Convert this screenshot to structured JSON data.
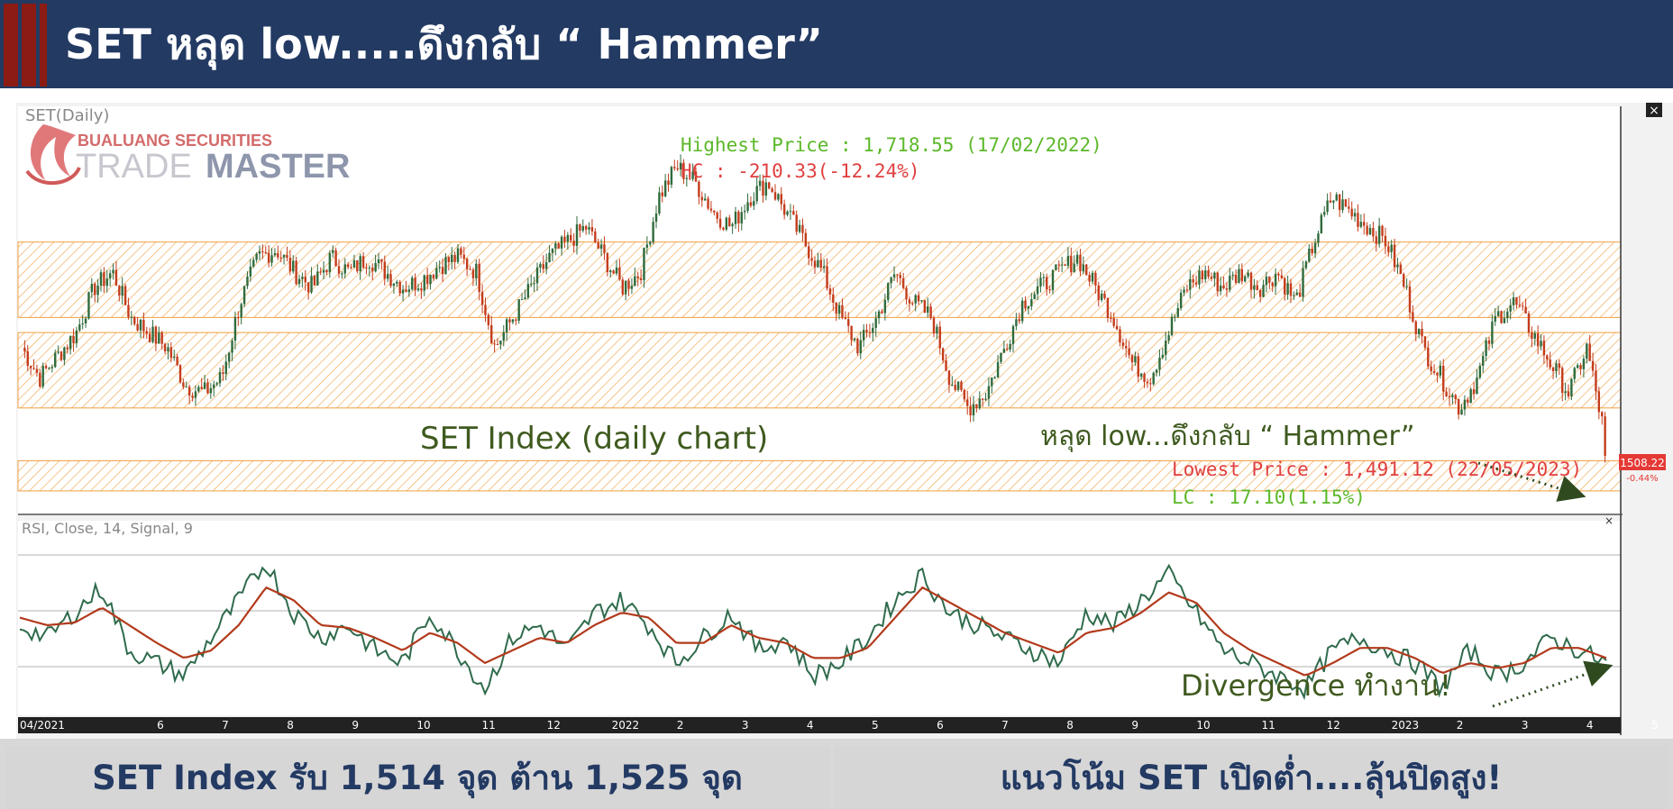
{
  "header": {
    "title": "SET หลุด low.....ดึงกลับ “ Hammer”",
    "background": "#233a63",
    "accent": "#8c1c13"
  },
  "logo": {
    "company": "BUALUANG SECURITIES",
    "product_light": "TRADE",
    "product_bold": "MASTER",
    "color": "#c84a4a"
  },
  "price_panel": {
    "label": "SET(Daily)",
    "last_price_badge": "1508.22",
    "change_pct": "-0.44%",
    "close_button": "×"
  },
  "rsi_panel": {
    "label": "RSI, Close, 14, Signal, 9",
    "close_button": "×"
  },
  "annotations": {
    "highest": "Highest Price : 1,718.55 (17/02/2022)",
    "hc": "HC : -210.33(-12.24%)",
    "lowest": "Lowest Price : 1,491.12 (22/05/2023)",
    "lc": "LC : 17.10(1.15%)",
    "chart_label": "SET Index (daily chart)",
    "hammer_note": "หลุด low...ดึงกลับ “ Hammer”",
    "divergence_note": "Divergence ทำงาน!"
  },
  "footer": {
    "support_resistance": "SET Index รับ 1,514 จุด ต้าน 1,525 จุด",
    "strategy": "แนวโน้ม SET เปิดต่ำ....ลุ้นปิดสูง!"
  },
  "colors": {
    "up": "#2f6b3c",
    "down": "#c43c1c",
    "rsi": "#2f6b4c",
    "signal": "#b23a1c",
    "zone": "#f0a040",
    "green_text": "#5cb82a",
    "red_text": "#e04040",
    "olive_text": "#3f5a1f"
  },
  "chart_data": [
    {
      "type": "candlestick",
      "title": "SET(Daily)",
      "x_axis_labels": [
        "04/2021",
        "6",
        "7",
        "8",
        "9",
        "10",
        "11",
        "12",
        "2022",
        "2",
        "3",
        "4",
        "5",
        "6",
        "7",
        "8",
        "9",
        "10",
        "11",
        "12",
        "2023",
        "2",
        "3",
        "4",
        "5"
      ],
      "zones": [
        {
          "from": 1600,
          "to": 1650
        },
        {
          "from": 1540,
          "to": 1590
        },
        {
          "from": 1485,
          "to": 1505
        }
      ],
      "series_close": [
        1580,
        1560,
        1575,
        1590,
        1620,
        1630,
        1600,
        1590,
        1580,
        1555,
        1550,
        1560,
        1610,
        1640,
        1645,
        1630,
        1620,
        1640,
        1630,
        1640,
        1630,
        1620,
        1625,
        1635,
        1640,
        1630,
        1580,
        1600,
        1620,
        1640,
        1650,
        1660,
        1640,
        1620,
        1630,
        1680,
        1700,
        1690,
        1670,
        1660,
        1680,
        1690,
        1670,
        1650,
        1630,
        1600,
        1580,
        1600,
        1630,
        1610,
        1600,
        1560,
        1540,
        1550,
        1580,
        1610,
        1620,
        1630,
        1640,
        1620,
        1600,
        1570,
        1560,
        1590,
        1620,
        1630,
        1620,
        1630,
        1620,
        1630,
        1610,
        1650,
        1680,
        1670,
        1660,
        1650,
        1620,
        1580,
        1560,
        1540,
        1560,
        1600,
        1610,
        1590,
        1570,
        1550,
        1580,
        1520
      ],
      "highest": 1718.55,
      "lowest": 1491.12,
      "last": 1508.22
    },
    {
      "type": "line",
      "title": "RSI, Close, 14, Signal, 9",
      "series": [
        {
          "name": "RSI",
          "values": [
            55,
            50,
            60,
            70,
            45,
            40,
            35,
            50,
            65,
            80,
            60,
            50,
            55,
            45,
            40,
            60,
            45,
            30,
            50,
            55,
            45,
            60,
            65,
            55,
            40,
            50,
            60,
            45,
            50,
            35,
            40,
            50,
            65,
            75,
            60,
            55,
            50,
            45,
            40,
            60,
            55,
            65,
            75,
            60,
            45,
            40,
            35,
            30,
            45,
            50,
            45,
            40,
            30,
            45,
            35,
            40,
            50,
            45,
            40
          ]
        },
        {
          "name": "Signal",
          "values": [
            58,
            55,
            56,
            62,
            55,
            48,
            42,
            45,
            55,
            70,
            65,
            55,
            54,
            50,
            45,
            52,
            48,
            40,
            45,
            50,
            48,
            55,
            60,
            58,
            48,
            48,
            55,
            50,
            48,
            42,
            42,
            46,
            58,
            70,
            64,
            58,
            52,
            48,
            44,
            52,
            54,
            60,
            68,
            64,
            52,
            45,
            40,
            35,
            40,
            46,
            46,
            42,
            36,
            40,
            38,
            40,
            46,
            46,
            42
          ]
        }
      ]
    }
  ]
}
